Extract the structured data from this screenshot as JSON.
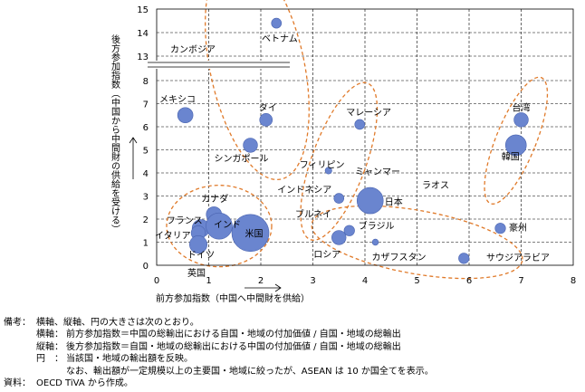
{
  "chart_data": {
    "type": "bubble",
    "xlabel": "前方参加指数（中国へ中間財を供給）",
    "ylabel": "後方参加指数（中国から中間財の供給を受ける）",
    "xlim": [
      0,
      8
    ],
    "ylim": [
      0,
      15
    ],
    "y_axis_break": "9 → 12",
    "x_ticks": [
      "0",
      "1",
      "2",
      "3",
      "4",
      "5",
      "6",
      "7",
      "8"
    ],
    "y_ticks": [
      "0",
      "1",
      "2",
      "3",
      "4",
      "5",
      "6",
      "7",
      "8",
      "13",
      "14",
      "15"
    ],
    "grid": true,
    "bubble_color": "#6a85cf",
    "ellipse_color": "#e07a2a",
    "points": [
      {
        "label": "ベトナム",
        "x": 2.3,
        "y": 14.4,
        "size": 1.0
      },
      {
        "label": "カンボジア",
        "x": 2.2,
        "y": 13.0,
        "size": 0.0
      },
      {
        "label": "メキシコ",
        "x": 0.55,
        "y": 6.5,
        "size": 2.0
      },
      {
        "label": "タイ",
        "x": 2.1,
        "y": 6.3,
        "size": 1.5
      },
      {
        "label": "シンガポール",
        "x": 1.8,
        "y": 5.2,
        "size": 1.8
      },
      {
        "label": "マレーシア",
        "x": 3.9,
        "y": 6.1,
        "size": 1.0
      },
      {
        "label": "台湾",
        "x": 7.0,
        "y": 6.3,
        "size": 1.8
      },
      {
        "label": "韓国",
        "x": 6.9,
        "y": 5.2,
        "size": 3.0
      },
      {
        "label": "フィリピン",
        "x": 3.3,
        "y": 4.1,
        "size": 0.4
      },
      {
        "label": "ミャンマー",
        "x": 3.4,
        "y": 4.0,
        "size": 0.0
      },
      {
        "label": "インドネシア",
        "x": 3.5,
        "y": 2.9,
        "size": 1.0
      },
      {
        "label": "日本",
        "x": 4.1,
        "y": 2.8,
        "size": 4.0
      },
      {
        "label": "ラオス",
        "x": 5.0,
        "y": 3.4,
        "size": 0.0
      },
      {
        "label": "ブルネイ",
        "x": 3.3,
        "y": 2.2,
        "size": 0.0
      },
      {
        "label": "カナダ",
        "x": 1.1,
        "y": 2.2,
        "size": 2.0
      },
      {
        "label": "フランス",
        "x": 0.85,
        "y": 1.6,
        "size": 2.4
      },
      {
        "label": "インド",
        "x": 1.2,
        "y": 1.7,
        "size": 4.0
      },
      {
        "label": "イタリア",
        "x": 0.8,
        "y": 1.4,
        "size": 1.8
      },
      {
        "label": "米国",
        "x": 1.8,
        "y": 1.4,
        "size": 6.0
      },
      {
        "label": "ドイツ",
        "x": 0.8,
        "y": 0.9,
        "size": 2.4
      },
      {
        "label": "英国",
        "x": 0.8,
        "y": 0.7,
        "size": 0.0
      },
      {
        "label": "ブラジル",
        "x": 3.7,
        "y": 1.5,
        "size": 1.1
      },
      {
        "label": "ロシア",
        "x": 3.5,
        "y": 1.2,
        "size": 1.8
      },
      {
        "label": "カザフスタン",
        "x": 4.2,
        "y": 1.0,
        "size": 0.3
      },
      {
        "label": "豪州",
        "x": 6.6,
        "y": 1.6,
        "size": 1.1
      },
      {
        "label": "サウジアラビア",
        "x": 5.9,
        "y": 0.3,
        "size": 1.1
      }
    ]
  },
  "notes": {
    "label_bikou": "備考：",
    "line1": "横軸、縦軸、円の大きさは次のとおり。",
    "line2_key": "横軸：",
    "line2": "前方参加指数＝中国の総輸出における自国・地域の付加価値 / 自国・地域の総輸出",
    "line3_key": "縦軸：",
    "line3": "後方参加指数＝自国・地域の総輸出における中国の付加価値 / 自国・地域の総輸出",
    "line4_key": "円　：",
    "line4": "当該国・地域の輸出額を反映。",
    "line5": "なお、輸出額が一定規模以上の主要国・地域に絞ったが、ASEAN は 10 か国全てを表示。",
    "label_shiryou": "資料：",
    "line6": "OECD TiVA から作成。"
  }
}
